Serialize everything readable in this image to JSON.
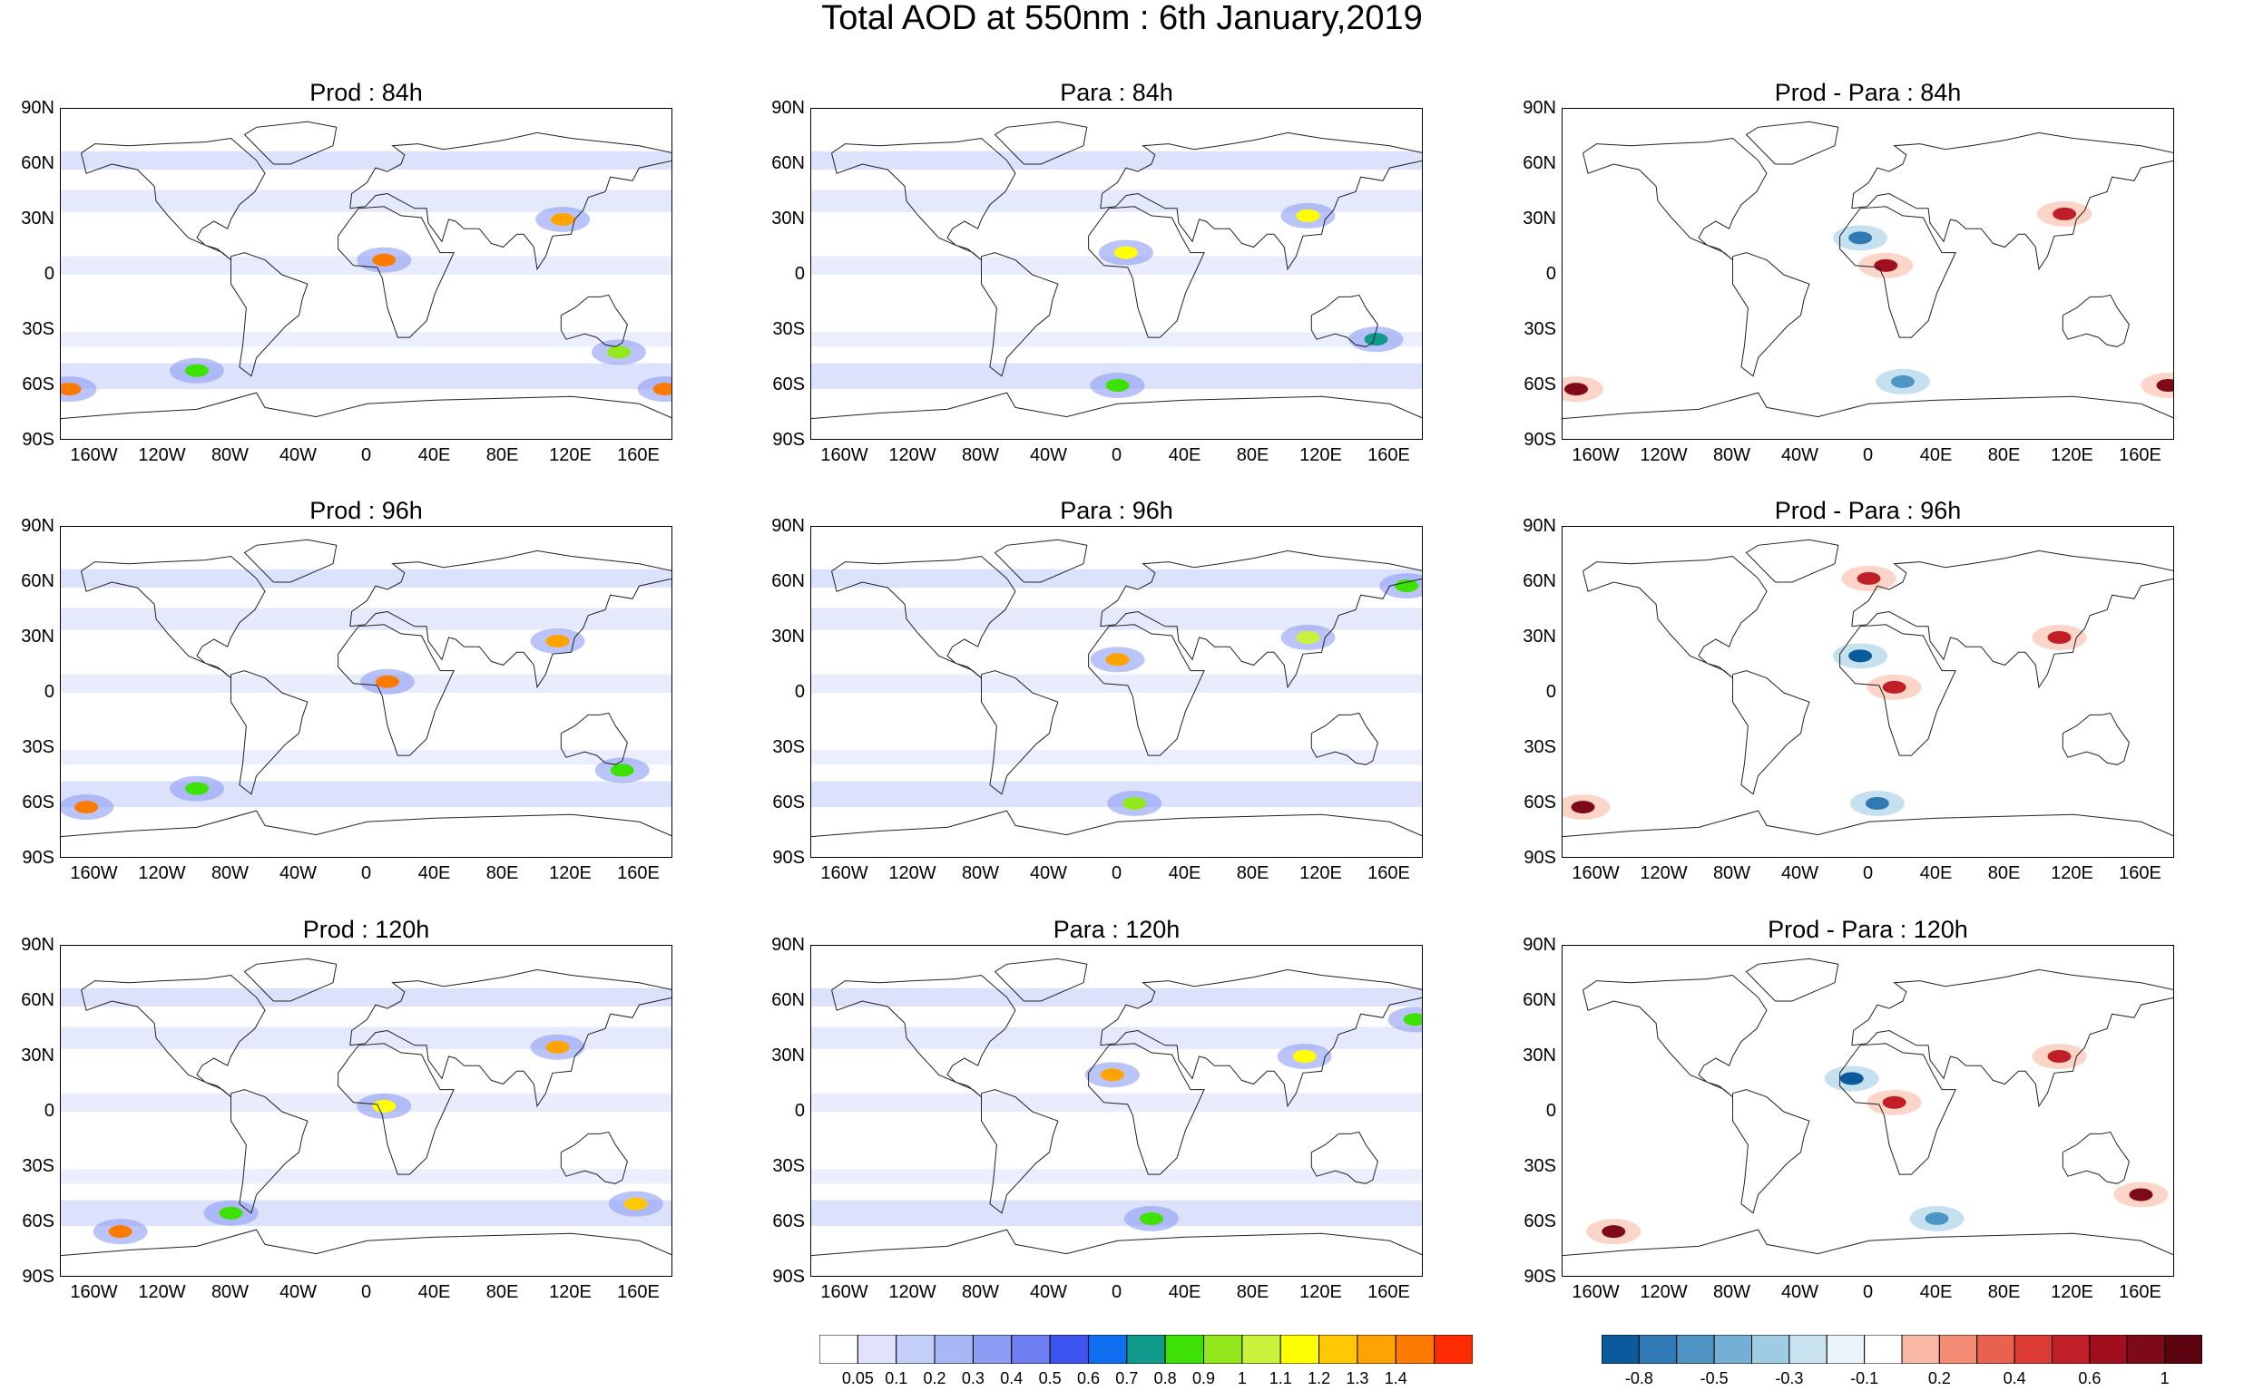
{
  "title": "Total AOD at 550nm : 6th January,2019",
  "lat_ticks": [
    "90N",
    "60N",
    "30N",
    "0",
    "30S",
    "60S",
    "90S"
  ],
  "lon_ticks": [
    "160W",
    "120W",
    "80W",
    "40W",
    "0",
    "40E",
    "80E",
    "120E",
    "160E"
  ],
  "panels": [
    {
      "title": "Prod : 84h",
      "kind": "aod"
    },
    {
      "title": "Para : 84h",
      "kind": "aod"
    },
    {
      "title": "Prod - Para : 84h",
      "kind": "diff"
    },
    {
      "title": "Prod : 96h",
      "kind": "aod"
    },
    {
      "title": "Para : 96h",
      "kind": "aod"
    },
    {
      "title": "Prod - Para : 96h",
      "kind": "diff"
    },
    {
      "title": "Prod : 120h",
      "kind": "aod"
    },
    {
      "title": "Para : 120h",
      "kind": "aod"
    },
    {
      "title": "Prod - Para : 120h",
      "kind": "diff"
    }
  ],
  "colorbar_aod": {
    "labels": [
      "0.05",
      "0.1",
      "0.2",
      "0.3",
      "0.4",
      "0.5",
      "0.6",
      "0.7",
      "0.8",
      "0.9",
      "1",
      "1.1",
      "1.2",
      "1.3",
      "1.4"
    ],
    "colors": [
      "#ffffff",
      "#dfe4fc",
      "#c4cff9",
      "#a8b8f6",
      "#8c9df3",
      "#6f7ef0",
      "#3d54ee",
      "#0e6ff0",
      "#0f9b8c",
      "#3de200",
      "#92e81b",
      "#c8f23c",
      "#ffff00",
      "#ffc800",
      "#ffa300",
      "#ff7a00",
      "#ff2b00"
    ]
  },
  "colorbar_diff": {
    "labels": [
      "-0.8",
      "-0.5",
      "-0.3",
      "-0.1",
      "0.2",
      "0.4",
      "0.6",
      "1"
    ],
    "colors": [
      "#0a5a9c",
      "#2f79b5",
      "#4e95c4",
      "#73b0d3",
      "#9fcbe3",
      "#c9e2ef",
      "#ebf4f9",
      "#ffffff",
      "#f9b9a4",
      "#f38e75",
      "#e9614f",
      "#dc3b34",
      "#c11f27",
      "#a10f1f",
      "#7f0a17",
      "#5c0310"
    ]
  },
  "chart_data": [
    {
      "type": "heatmap",
      "title": "Prod : 84h",
      "variable": "Total AOD at 550nm",
      "date": "6th January,2019",
      "xlim": [
        "180W",
        "180E"
      ],
      "ylim": [
        "90S",
        "90N"
      ],
      "color_levels": [
        0.05,
        0.1,
        0.2,
        0.3,
        0.4,
        0.5,
        0.6,
        0.7,
        0.8,
        0.9,
        1,
        1.1,
        1.2,
        1.3,
        1.4
      ],
      "features": [
        {
          "region": "West Africa",
          "lon": 10,
          "lat": 8,
          "aod": 1.4
        },
        {
          "region": "East China",
          "lon": 115,
          "lat": 30,
          "aod": 1.3
        },
        {
          "region": "Southern Ocean (160W)",
          "lon": -175,
          "lat": -62,
          "aod": 1.4
        },
        {
          "region": "Southern Ocean (175E)",
          "lon": 175,
          "lat": -62,
          "aod": 1.4
        },
        {
          "region": "Southern Ocean (100W)",
          "lon": -100,
          "lat": -52,
          "aod": 0.8
        },
        {
          "region": "SE Australia",
          "lon": 148,
          "lat": -42,
          "aod": 0.9
        }
      ]
    },
    {
      "type": "heatmap",
      "title": "Para : 84h",
      "variable": "Total AOD at 550nm",
      "xlim": [
        "180W",
        "180E"
      ],
      "ylim": [
        "90S",
        "90N"
      ],
      "features": [
        {
          "region": "West Africa",
          "lon": 5,
          "lat": 12,
          "aod": 1.1
        },
        {
          "region": "East China",
          "lon": 112,
          "lat": 32,
          "aod": 1.1
        },
        {
          "region": "Southern Ocean (0)",
          "lon": 0,
          "lat": -60,
          "aod": 0.8
        },
        {
          "region": "SE Australia",
          "lon": 152,
          "lat": -35,
          "aod": 0.7
        }
      ]
    },
    {
      "type": "heatmap",
      "title": "Prod - Para : 84h",
      "variable": "AOD difference",
      "xlim": [
        "180W",
        "180E"
      ],
      "ylim": [
        "90S",
        "90N"
      ],
      "color_levels": [
        -0.8,
        -0.5,
        -0.3,
        -0.1,
        0.2,
        0.4,
        0.6,
        1
      ],
      "features": [
        {
          "region": "Southern Ocean (170W)",
          "lon": -172,
          "lat": -62,
          "diff": 1
        },
        {
          "region": "Southern Ocean (175E)",
          "lon": 176,
          "lat": -60,
          "diff": 1
        },
        {
          "region": "Central Africa",
          "lon": 10,
          "lat": 5,
          "diff": 0.8
        },
        {
          "region": "Sahara",
          "lon": -5,
          "lat": 20,
          "diff": -0.6
        },
        {
          "region": "East China",
          "lon": 115,
          "lat": 33,
          "diff": 0.6
        },
        {
          "region": "Southern Ocean (20E)",
          "lon": 20,
          "lat": -58,
          "diff": -0.5
        }
      ]
    },
    {
      "type": "heatmap",
      "title": "Prod : 96h",
      "variable": "Total AOD at 550nm",
      "xlim": [
        "180W",
        "180E"
      ],
      "ylim": [
        "90S",
        "90N"
      ],
      "features": [
        {
          "region": "West Africa",
          "lon": 12,
          "lat": 6,
          "aod": 1.4
        },
        {
          "region": "East China",
          "lon": 112,
          "lat": 28,
          "aod": 1.3
        },
        {
          "region": "Southern Ocean (155W)",
          "lon": -165,
          "lat": -62,
          "aod": 1.4
        },
        {
          "region": "Southern Ocean (100W)",
          "lon": -100,
          "lat": -52,
          "aod": 0.8
        },
        {
          "region": "SE Australia",
          "lon": 150,
          "lat": -42,
          "aod": 0.8
        }
      ]
    },
    {
      "type": "heatmap",
      "title": "Para : 96h",
      "variable": "Total AOD at 550nm",
      "xlim": [
        "180W",
        "180E"
      ],
      "ylim": [
        "90S",
        "90N"
      ],
      "features": [
        {
          "region": "West Africa",
          "lon": 0,
          "lat": 18,
          "aod": 1.3
        },
        {
          "region": "East China",
          "lon": 112,
          "lat": 30,
          "aod": 1.0
        },
        {
          "region": "Southern Ocean (0)",
          "lon": 10,
          "lat": -60,
          "aod": 0.9
        },
        {
          "region": "NE Pacific",
          "lon": 170,
          "lat": 58,
          "aod": 0.8
        }
      ]
    },
    {
      "type": "heatmap",
      "title": "Prod - Para : 96h",
      "variable": "AOD difference",
      "xlim": [
        "180W",
        "180E"
      ],
      "ylim": [
        "90S",
        "90N"
      ],
      "features": [
        {
          "region": "Southern Ocean (165W)",
          "lon": -168,
          "lat": -62,
          "diff": 1
        },
        {
          "region": "Sahara",
          "lon": -5,
          "lat": 20,
          "diff": -0.8
        },
        {
          "region": "Central Africa",
          "lon": 15,
          "lat": 3,
          "diff": 0.6
        },
        {
          "region": "Europe",
          "lon": 0,
          "lat": 62,
          "diff": 0.6
        },
        {
          "region": "East China",
          "lon": 112,
          "lat": 30,
          "diff": 0.6
        },
        {
          "region": "Southern Ocean (0)",
          "lon": 5,
          "lat": -60,
          "diff": -0.6
        }
      ]
    },
    {
      "type": "heatmap",
      "title": "Prod : 120h",
      "variable": "Total AOD at 550nm",
      "xlim": [
        "180W",
        "180E"
      ],
      "ylim": [
        "90S",
        "90N"
      ],
      "features": [
        {
          "region": "Central Africa",
          "lon": 10,
          "lat": 3,
          "aod": 1.1
        },
        {
          "region": "East China",
          "lon": 112,
          "lat": 35,
          "aod": 1.3
        },
        {
          "region": "Southern Ocean (135W)",
          "lon": -145,
          "lat": -65,
          "aod": 1.4
        },
        {
          "region": "New Zealand / Tasman",
          "lon": 158,
          "lat": -50,
          "aod": 1.2
        },
        {
          "region": "Southern Ocean (80W)",
          "lon": -80,
          "lat": -55,
          "aod": 0.8
        }
      ]
    },
    {
      "type": "heatmap",
      "title": "Para : 120h",
      "variable": "Total AOD at 550nm",
      "xlim": [
        "180W",
        "180E"
      ],
      "ylim": [
        "90S",
        "90N"
      ],
      "features": [
        {
          "region": "West Africa",
          "lon": -3,
          "lat": 20,
          "aod": 1.3
        },
        {
          "region": "East China",
          "lon": 110,
          "lat": 30,
          "aod": 1.1
        },
        {
          "region": "Southern Ocean (20E)",
          "lon": 20,
          "lat": -58,
          "aod": 0.8
        },
        {
          "region": "NE Pacific",
          "lon": 175,
          "lat": 50,
          "aod": 0.8
        }
      ]
    },
    {
      "type": "heatmap",
      "title": "Prod - Para : 120h",
      "variable": "AOD difference",
      "xlim": [
        "180W",
        "180E"
      ],
      "ylim": [
        "90S",
        "90N"
      ],
      "features": [
        {
          "region": "Southern Ocean (150W)",
          "lon": -150,
          "lat": -65,
          "diff": 1
        },
        {
          "region": "Tasman Sea",
          "lon": 160,
          "lat": -45,
          "diff": 1
        },
        {
          "region": "Sahara",
          "lon": -10,
          "lat": 18,
          "diff": -0.8
        },
        {
          "region": "Central Africa",
          "lon": 15,
          "lat": 5,
          "diff": 0.6
        },
        {
          "region": "East China",
          "lon": 112,
          "lat": 30,
          "diff": 0.6
        },
        {
          "region": "Southern Ocean (40E)",
          "lon": 40,
          "lat": -58,
          "diff": -0.5
        }
      ]
    }
  ]
}
